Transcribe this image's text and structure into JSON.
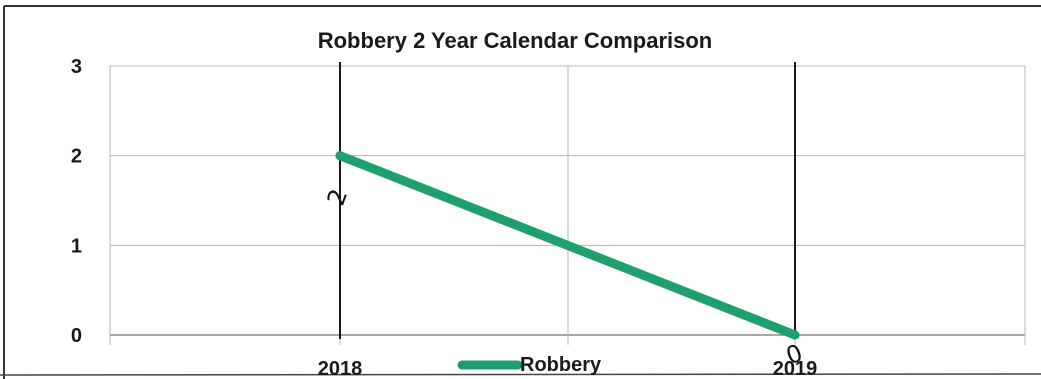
{
  "chart_data": {
    "type": "line",
    "title": "Robbery 2 Year Calendar Comparison",
    "categories": [
      "2018",
      "2019"
    ],
    "series": [
      {
        "name": "Robbery",
        "values": [
          2,
          0
        ],
        "color": "#1f9e6e"
      }
    ],
    "ylim": [
      0,
      3
    ],
    "yticks": [
      "0",
      "1",
      "2",
      "3"
    ],
    "xlabel": "",
    "ylabel": "",
    "grid": true,
    "legend": "bottom",
    "handwritten_annotations": [
      "2",
      "0"
    ]
  }
}
